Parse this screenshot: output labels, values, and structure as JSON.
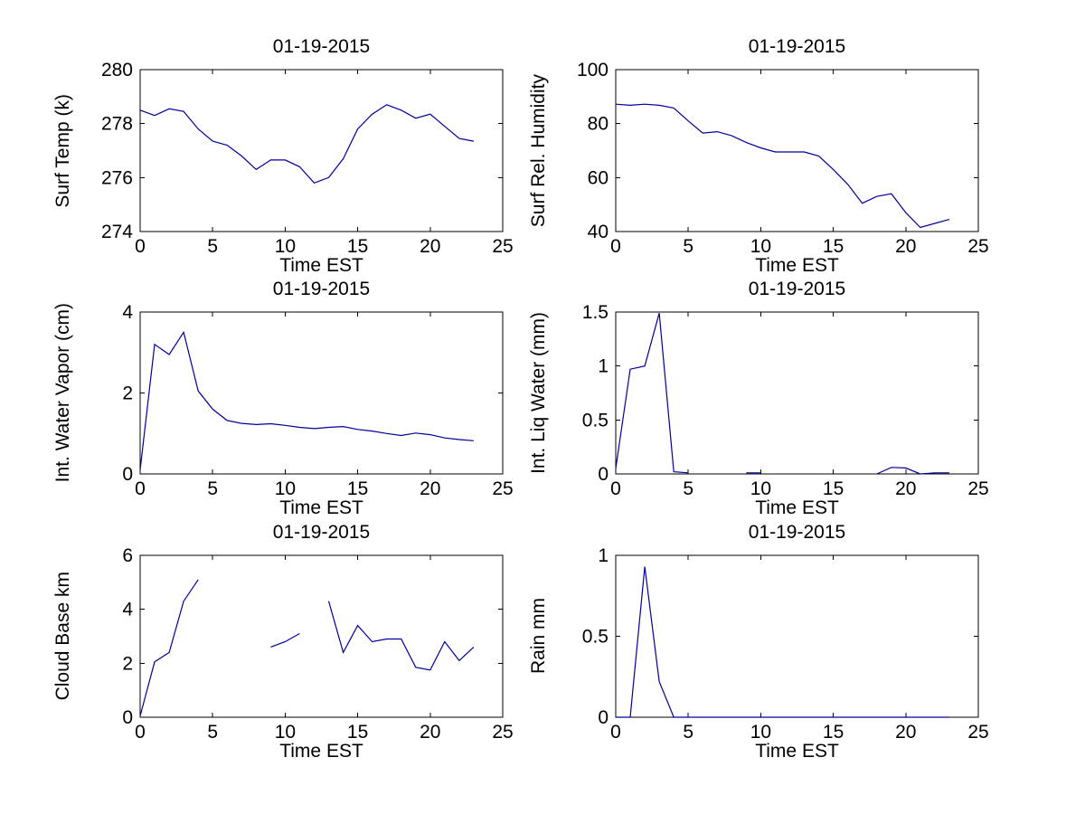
{
  "figure": {
    "background": "#ffffff",
    "line_color": "#00009c",
    "axis_color": "#000000",
    "date": "01-19-2015"
  },
  "chart_data": [
    {
      "type": "line",
      "title": "01-19-2015",
      "xlabel": "Time EST",
      "ylabel": "Surf Temp (k)",
      "xlim": [
        0,
        25
      ],
      "xticks": [
        0,
        5,
        10,
        15,
        20,
        25
      ],
      "ylim": [
        274,
        280
      ],
      "yticks": [
        274,
        276,
        278,
        280
      ],
      "grid": false,
      "legend": null,
      "x": [
        0,
        1,
        2,
        3,
        4,
        5,
        6,
        7,
        8,
        9,
        10,
        11,
        12,
        13,
        14,
        15,
        16,
        17,
        18,
        19,
        20,
        21,
        22,
        23
      ],
      "values": [
        278.5,
        278.3,
        278.55,
        278.45,
        277.8,
        277.35,
        277.2,
        276.8,
        276.3,
        276.65,
        276.65,
        276.4,
        275.8,
        276.0,
        276.7,
        277.8,
        278.35,
        278.7,
        278.5,
        278.2,
        278.35,
        277.9,
        277.45,
        277.35
      ]
    },
    {
      "type": "line",
      "title": "01-19-2015",
      "xlabel": "Time EST",
      "ylabel": "Surf Rel. Humidity",
      "xlim": [
        0,
        25
      ],
      "xticks": [
        0,
        5,
        10,
        15,
        20,
        25
      ],
      "ylim": [
        40,
        100
      ],
      "yticks": [
        40,
        60,
        80,
        100
      ],
      "grid": false,
      "legend": null,
      "x": [
        0,
        1,
        2,
        3,
        4,
        5,
        6,
        7,
        8,
        9,
        10,
        11,
        12,
        13,
        14,
        15,
        16,
        17,
        18,
        19,
        20,
        21,
        22,
        23
      ],
      "values": [
        87.2,
        86.8,
        87.2,
        86.8,
        85.8,
        81,
        76.5,
        77,
        75.5,
        73,
        71,
        69.5,
        69.5,
        69.5,
        68,
        63,
        57.5,
        50.5,
        53,
        54,
        47,
        41.5,
        43,
        44.5
      ]
    },
    {
      "type": "line",
      "title": "01-19-2015",
      "xlabel": "Time EST",
      "ylabel": "Int. Water Vapor (cm)",
      "xlim": [
        0,
        25
      ],
      "xticks": [
        0,
        5,
        10,
        15,
        20,
        25
      ],
      "ylim": [
        0,
        4
      ],
      "yticks": [
        0,
        2,
        4
      ],
      "grid": false,
      "legend": null,
      "x": [
        0,
        1,
        2,
        3,
        4,
        5,
        6,
        7,
        8,
        9,
        10,
        11,
        12,
        13,
        14,
        15,
        16,
        17,
        18,
        19,
        20,
        21,
        22,
        23
      ],
      "values": [
        0.1,
        3.2,
        2.95,
        3.5,
        2.05,
        1.6,
        1.32,
        1.25,
        1.22,
        1.24,
        1.2,
        1.15,
        1.12,
        1.15,
        1.17,
        1.1,
        1.06,
        1.0,
        0.95,
        1.01,
        0.97,
        0.89,
        0.85,
        0.82
      ]
    },
    {
      "type": "line",
      "title": "01-19-2015",
      "xlabel": "Time EST",
      "ylabel": "Int. Liq Water (mm)",
      "xlim": [
        0,
        25
      ],
      "xticks": [
        0,
        5,
        10,
        15,
        20,
        25
      ],
      "ylim": [
        0,
        1.5
      ],
      "yticks": [
        0,
        0.5,
        1,
        1.5
      ],
      "grid": false,
      "legend": null,
      "x": [
        0,
        1,
        2,
        3,
        4,
        5,
        6,
        7,
        8,
        9,
        10,
        11,
        12,
        13,
        14,
        15,
        16,
        17,
        18,
        19,
        20,
        21,
        22,
        23
      ],
      "values": [
        0.05,
        0.97,
        1.0,
        1.49,
        0.02,
        0.01,
        null,
        null,
        null,
        0.01,
        0.01,
        null,
        null,
        null,
        null,
        null,
        null,
        null,
        0.0,
        0.06,
        0.055,
        0.0,
        0.01,
        0.01
      ]
    },
    {
      "type": "line",
      "title": "01-19-2015",
      "xlabel": "Time EST",
      "ylabel": "Cloud Base km",
      "xlim": [
        0,
        25
      ],
      "xticks": [
        0,
        5,
        10,
        15,
        20,
        25
      ],
      "ylim": [
        0,
        6
      ],
      "yticks": [
        0,
        2,
        4,
        6
      ],
      "grid": false,
      "legend": null,
      "x": [
        0,
        1,
        2,
        3,
        4,
        5,
        6,
        7,
        8,
        9,
        10,
        11,
        12,
        13,
        14,
        15,
        16,
        17,
        18,
        19,
        20,
        21,
        22,
        23
      ],
      "values": [
        0.05,
        2.05,
        2.4,
        4.3,
        5.1,
        null,
        null,
        null,
        null,
        2.6,
        2.8,
        3.1,
        null,
        4.3,
        2.4,
        3.4,
        2.8,
        2.9,
        2.9,
        1.85,
        1.75,
        2.8,
        2.1,
        2.6
      ]
    },
    {
      "type": "line",
      "title": "01-19-2015",
      "xlabel": "Time EST",
      "ylabel": "Rain mm",
      "xlim": [
        0,
        25
      ],
      "xticks": [
        0,
        5,
        10,
        15,
        20,
        25
      ],
      "ylim": [
        0,
        1
      ],
      "yticks": [
        0,
        0.5,
        1
      ],
      "grid": false,
      "legend": null,
      "x": [
        0,
        1,
        2,
        3,
        4,
        5,
        6,
        7,
        8,
        9,
        10,
        11,
        12,
        13,
        14,
        15,
        16,
        17,
        18,
        19,
        20,
        21,
        22,
        23
      ],
      "values": [
        0,
        0,
        0.93,
        0.22,
        0,
        0,
        0,
        0,
        0,
        0,
        0,
        0,
        0,
        0,
        0,
        0,
        0,
        0,
        0,
        0,
        0,
        0,
        0,
        0
      ]
    }
  ]
}
